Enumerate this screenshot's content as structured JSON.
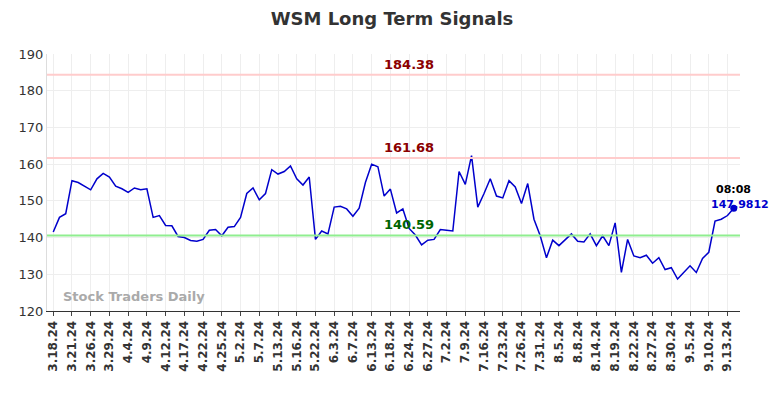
{
  "chart_data": {
    "type": "line",
    "title": "WSM Long Term Signals",
    "categories": [
      "3.18.24",
      null,
      null,
      "3.21.24",
      null,
      null,
      "3.26.24",
      null,
      null,
      "3.29.24",
      null,
      null,
      "4.4.24",
      null,
      null,
      "4.9.24",
      null,
      null,
      "4.12.24",
      null,
      null,
      "4.17.24",
      null,
      null,
      "4.22.24",
      null,
      null,
      "4.25.24",
      null,
      null,
      "5.2.24",
      null,
      null,
      "5.7.24",
      null,
      null,
      "5.13.24",
      null,
      null,
      "5.16.24",
      null,
      null,
      "5.22.24",
      null,
      null,
      "6.3.24",
      null,
      null,
      "6.7.24",
      null,
      null,
      "6.13.24",
      null,
      null,
      "6.18.24",
      null,
      null,
      "6.24.24",
      null,
      null,
      "6.27.24",
      null,
      null,
      "7.2.24",
      null,
      null,
      "7.9.24",
      null,
      null,
      "7.16.24",
      null,
      null,
      "7.23.24",
      null,
      null,
      "7.26.24",
      null,
      null,
      "7.31.24",
      null,
      null,
      "8.5.24",
      null,
      null,
      "8.8.24",
      null,
      null,
      "8.14.24",
      null,
      null,
      "8.19.24",
      null,
      null,
      "8.22.24",
      null,
      null,
      "8.27.24",
      null,
      null,
      "8.30.24",
      null,
      null,
      "9.5.24",
      null,
      null,
      "9.10.24",
      null,
      null,
      "9.13.24",
      null
    ],
    "values": [
      141.5,
      145.5,
      146.5,
      155.5,
      155,
      154,
      153,
      156,
      157.5,
      156.5,
      154,
      153.3,
      152.3,
      153.5,
      153,
      153.3,
      145.5,
      146,
      143.3,
      143.2,
      140.3,
      140,
      139.2,
      139,
      139.5,
      142,
      142.2,
      140.5,
      142.8,
      143,
      145.5,
      152,
      153.5,
      150.3,
      152,
      158.5,
      157.3,
      158,
      159.5,
      156,
      154.3,
      156.5,
      139.5,
      141.8,
      141,
      148.3,
      148.5,
      147.8,
      145.8,
      148,
      155,
      160,
      159.3,
      151.3,
      153.2,
      146.7,
      147.8,
      142.5,
      140.7,
      138,
      139.3,
      139.5,
      142.2,
      142,
      141.8,
      158,
      154.5,
      162.3,
      148.3,
      152,
      156,
      151.3,
      150.8,
      155.5,
      153.8,
      149.3,
      154.7,
      145,
      140.5,
      134.5,
      139.3,
      137.8,
      139.5,
      141,
      139,
      138.8,
      141,
      137.8,
      140.5,
      137.8,
      144,
      130.5,
      139.5,
      135,
      134.5,
      135.2,
      133,
      134.5,
      131.3,
      131.8,
      128.7,
      130.5,
      132.3,
      130.5,
      134.3,
      136,
      144.5,
      145,
      146,
      147.9812
    ],
    "color": "#0000cc",
    "ylim": [
      120,
      190
    ],
    "yticks": [
      120,
      130,
      140,
      150,
      160,
      170,
      180,
      190
    ],
    "grid": true,
    "levels": [
      {
        "value": 184.38,
        "color": "#ffcccc",
        "label_color": "#8b0000"
      },
      {
        "value": 161.68,
        "color": "#ffcccc",
        "label_color": "#8b0000"
      },
      {
        "value": 140.59,
        "color": "#90ee90",
        "label_color": "#006400"
      }
    ],
    "last_point": {
      "time": "08:08",
      "label": "147.9812"
    },
    "watermark": "Stock Traders Daily"
  }
}
